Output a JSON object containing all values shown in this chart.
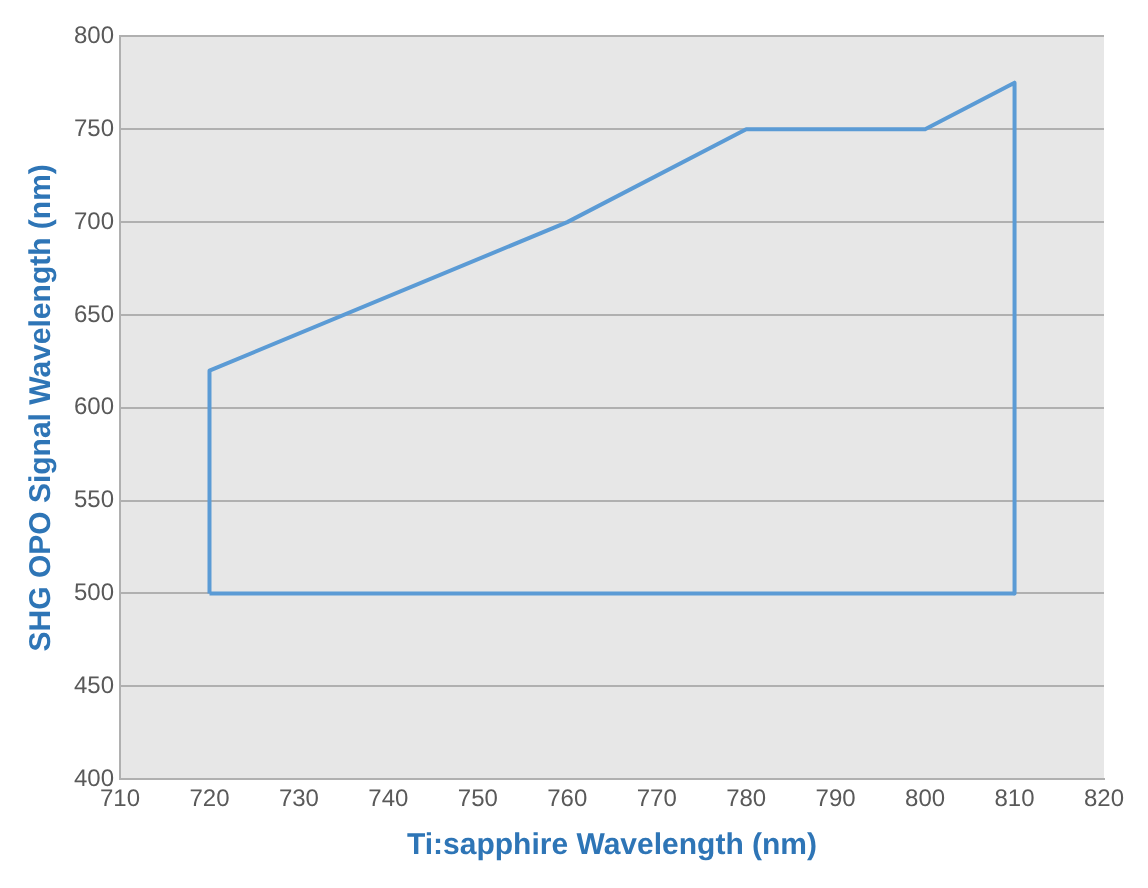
{
  "chart_data": {
    "type": "line",
    "xlabel": "Ti:sapphire Wavelength (nm)",
    "ylabel": "SHG OPO Signal Wavelength (nm)",
    "series": [
      {
        "color": "#5b9bd5",
        "x": [
          720,
          720,
          760,
          780,
          800,
          810,
          810
        ],
        "values": [
          500,
          620,
          700,
          750,
          750,
          775,
          500
        ]
      },
      {
        "color": "#5b9bd5",
        "x": [
          720,
          810
        ],
        "values": [
          500,
          500
        ]
      }
    ],
    "xlim": [
      710,
      820
    ],
    "xticks": [
      710,
      720,
      730,
      740,
      750,
      760,
      770,
      780,
      790,
      800,
      810,
      820
    ],
    "ylim": [
      400,
      800
    ],
    "yticks": [
      400,
      450,
      500,
      550,
      600,
      650,
      700,
      750,
      800
    ],
    "grid": "y",
    "legend": false,
    "marker": "none",
    "line_style": "solid"
  }
}
